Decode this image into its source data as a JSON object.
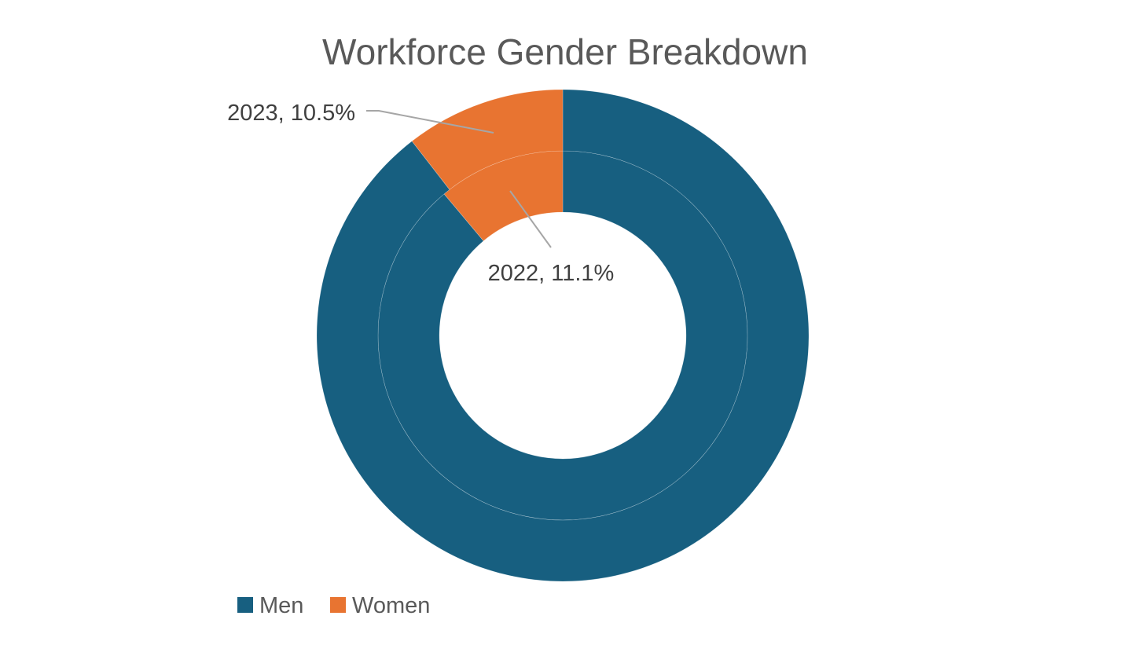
{
  "chart_data": {
    "type": "doughnut",
    "title": "Workforce Gender Breakdown",
    "categories": [
      "Men",
      "Women"
    ],
    "colors": {
      "Men": "#175f80",
      "Women": "#e87431"
    },
    "series": [
      {
        "name": "2022",
        "ring": "inner",
        "values": [
          88.9,
          11.1
        ]
      },
      {
        "name": "2023",
        "ring": "outer",
        "values": [
          89.5,
          10.5
        ]
      }
    ],
    "data_labels": [
      {
        "series": "2023",
        "category": "Women",
        "text": "2023, 10.5%"
      },
      {
        "series": "2022",
        "category": "Women",
        "text": "2022, 11.1%"
      }
    ],
    "legend": {
      "position": "bottom-left",
      "entries": [
        "Men",
        "Women"
      ]
    }
  }
}
